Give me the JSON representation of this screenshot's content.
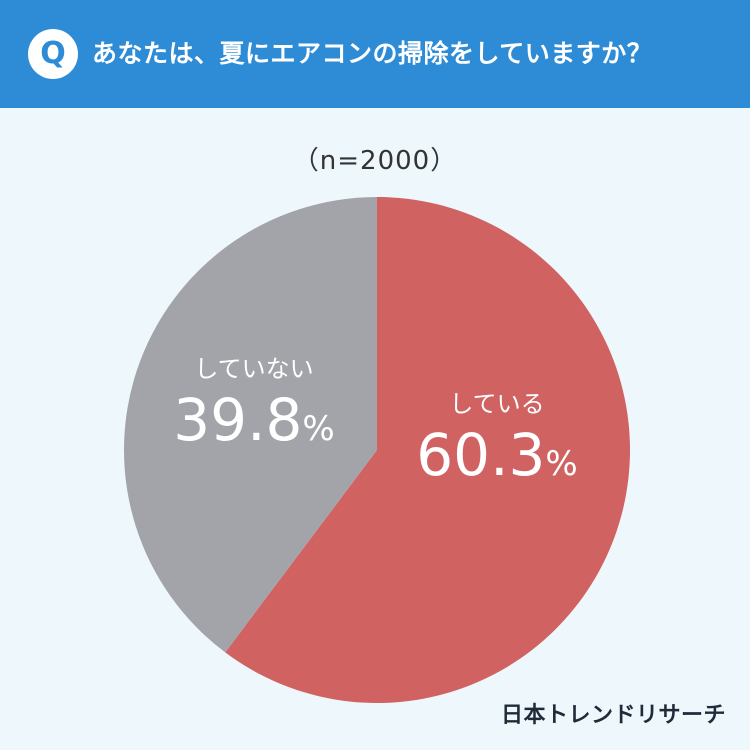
{
  "header": {
    "badge": "Q",
    "question": "あなたは、夏にエアコンの掃除をしていますか？"
  },
  "sample_size": "（n=2000）",
  "chart_data": {
    "type": "pie",
    "slices": [
      {
        "label": "している",
        "value": 60.3,
        "display": "60.3",
        "unit": "%",
        "color": "#d06262"
      },
      {
        "label": "していない",
        "value": 39.8,
        "display": "39.8",
        "unit": "%",
        "color": "#a3a4a9"
      }
    ],
    "start": "12 o'clock",
    "direction": "clockwise"
  },
  "brand": "日本トレンドリサーチ",
  "colors": {
    "header_bg": "#2e8cd6",
    "page_bg": "#eef7fb",
    "label_text": "#ffffff"
  }
}
